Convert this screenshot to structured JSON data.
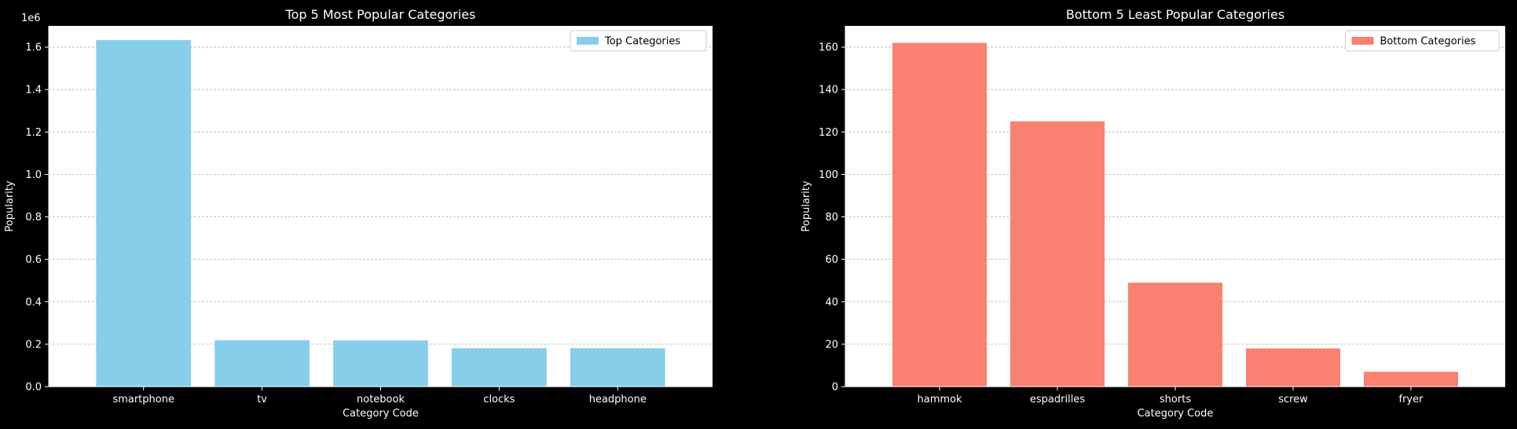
{
  "chart_data": [
    {
      "type": "bar",
      "title": "Top 5 Most Popular Categories",
      "xlabel": "Category Code",
      "ylabel": "Popularity",
      "categories": [
        "smartphone",
        "tv",
        "notebook",
        "clocks",
        "headphone"
      ],
      "series": [
        {
          "name": "Top Categories",
          "values": [
            1633000,
            219000,
            218000,
            181000,
            181000
          ]
        }
      ],
      "ylim": [
        0,
        1.7
      ],
      "y_scale_label": "1e6",
      "yticks": [
        0.0,
        0.2,
        0.4,
        0.6,
        0.8,
        1.0,
        1.2,
        1.4,
        1.6
      ],
      "ytick_labels": [
        "0.0",
        "0.2",
        "0.4",
        "0.6",
        "0.8",
        "1.0",
        "1.2",
        "1.4",
        "1.6"
      ],
      "grid": "horizontal dashed",
      "legend": "top-right",
      "color": "#87CEEB"
    },
    {
      "type": "bar",
      "title": "Bottom 5 Least Popular Categories",
      "xlabel": "Category Code",
      "ylabel": "Popularity",
      "categories": [
        "hammok",
        "espadrilles",
        "shorts",
        "screw",
        "fryer"
      ],
      "series": [
        {
          "name": "Bottom Categories",
          "values": [
            162,
            125,
            49,
            18,
            7
          ]
        }
      ],
      "ylim": [
        0,
        170
      ],
      "yticks": [
        0,
        20,
        40,
        60,
        80,
        100,
        120,
        140,
        160
      ],
      "ytick_labels": [
        "0",
        "20",
        "40",
        "60",
        "80",
        "100",
        "120",
        "140",
        "160"
      ],
      "grid": "horizontal dashed",
      "legend": "top-right",
      "color": "#FA8072"
    }
  ],
  "colors": {
    "figure_background": "#000000",
    "plot_background": "#FFFFFF",
    "text": "#FFFFFF",
    "grid": "#B0B0B0"
  }
}
